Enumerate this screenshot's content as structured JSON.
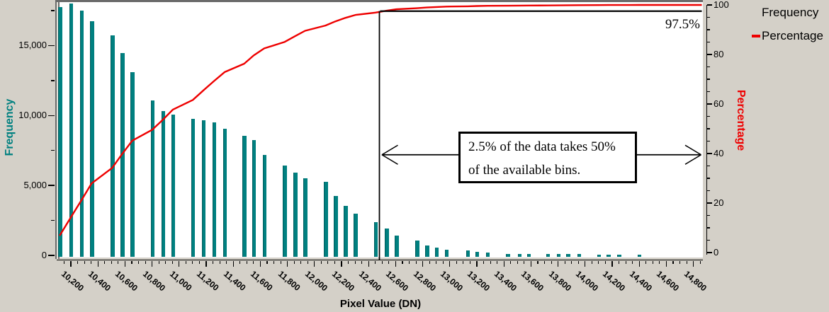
{
  "canvas": {
    "bg": "#d4d0c8",
    "plot_bg": "#ffffff",
    "border_gray": "#6a6a6a"
  },
  "colors": {
    "bar": "#008080",
    "bar_edge": "#015c5d",
    "line": "#ee0000",
    "left_title": "#008080",
    "right_title": "#ee0000",
    "text": "#000000"
  },
  "legend": {
    "items": [
      {
        "label": "Frequency",
        "marker": "none"
      },
      {
        "label": "Percentage",
        "marker": "red-dash",
        "marker_color": "#ee0000"
      }
    ]
  },
  "axes": {
    "x": {
      "title": "Pixel Value (DN)",
      "min": 10110,
      "max": 14860,
      "tick_values": [
        10200,
        10400,
        10600,
        10800,
        11000,
        11200,
        11400,
        11600,
        11800,
        12000,
        12200,
        12400,
        12600,
        12800,
        13000,
        13200,
        13400,
        13600,
        13800,
        14000,
        14200,
        14400,
        14600,
        14800
      ],
      "tick_labels": [
        "10,200",
        "10,400",
        "10,600",
        "10,800",
        "11,000",
        "11,200",
        "11,400",
        "11,600",
        "11,800",
        "12,000",
        "12,200",
        "12,400",
        "12,600",
        "12,800",
        "13,000",
        "13,200",
        "13,400",
        "13,600",
        "13,800",
        "14,000",
        "14,200",
        "14,400",
        "14,600",
        "14,800"
      ],
      "minor_step": 50,
      "label_rotation_deg": 40
    },
    "y_left": {
      "title": "Frequency",
      "min": 0,
      "max": 18300,
      "tick_values": [
        0,
        5000,
        10000,
        15000
      ],
      "tick_labels": [
        "0",
        "5,000",
        "10,000",
        "15,000"
      ],
      "minor_values": [
        2500,
        7500,
        12500,
        17500
      ]
    },
    "y_right": {
      "title": "Percentage",
      "min": 0,
      "max": 100,
      "tick_values": [
        0,
        20,
        40,
        60,
        80,
        100
      ],
      "tick_labels": [
        "0",
        "20",
        "40",
        "60",
        "80",
        "100"
      ],
      "minor_step": 5
    }
  },
  "annotations": {
    "threshold_label": "97.5%",
    "box_line1": "2.5% of the data takes 50%",
    "box_line2": "of the available bins.",
    "vline_dn": 12480,
    "hline_pct": 97.5,
    "arrow_pct": 39.5
  },
  "chart_data": {
    "type": "bar",
    "title": "",
    "xlabel": "Pixel Value (DN)",
    "ylabel": "Frequency",
    "y2label": "Percentage",
    "x_range": [
      10110,
      14860
    ],
    "ylim": [
      0,
      18300
    ],
    "y2lim": [
      0,
      100
    ],
    "bars": [
      {
        "dn": 10120,
        "freq": 17750
      },
      {
        "dn": 10200,
        "freq": 18000
      },
      {
        "dn": 10279,
        "freq": 17500
      },
      {
        "dn": 10353,
        "freq": 16750
      },
      {
        "dn": 10505,
        "freq": 15750
      },
      {
        "dn": 10581,
        "freq": 14450
      },
      {
        "dn": 10654,
        "freq": 13100
      },
      {
        "dn": 10802,
        "freq": 11080
      },
      {
        "dn": 10881,
        "freq": 10300
      },
      {
        "dn": 10954,
        "freq": 10050
      },
      {
        "dn": 11101,
        "freq": 9760
      },
      {
        "dn": 11179,
        "freq": 9660
      },
      {
        "dn": 11258,
        "freq": 9510
      },
      {
        "dn": 11336,
        "freq": 9050
      },
      {
        "dn": 11481,
        "freq": 8550
      },
      {
        "dn": 11551,
        "freq": 8250
      },
      {
        "dn": 11629,
        "freq": 7180
      },
      {
        "dn": 11778,
        "freq": 6420
      },
      {
        "dn": 11856,
        "freq": 5920
      },
      {
        "dn": 11931,
        "freq": 5510
      },
      {
        "dn": 12081,
        "freq": 5260
      },
      {
        "dn": 12155,
        "freq": 4250
      },
      {
        "dn": 12228,
        "freq": 3540
      },
      {
        "dn": 12303,
        "freq": 2990
      },
      {
        "dn": 12451,
        "freq": 2380
      },
      {
        "dn": 12534,
        "freq": 1920
      },
      {
        "dn": 12605,
        "freq": 1420
      },
      {
        "dn": 12757,
        "freq": 1060
      },
      {
        "dn": 12830,
        "freq": 710
      },
      {
        "dn": 12902,
        "freq": 560
      },
      {
        "dn": 12975,
        "freq": 390
      },
      {
        "dn": 13132,
        "freq": 330
      },
      {
        "dn": 13200,
        "freq": 230
      },
      {
        "dn": 13279,
        "freq": 210
      },
      {
        "dn": 13429,
        "freq": 120
      },
      {
        "dn": 13515,
        "freq": 100
      },
      {
        "dn": 13583,
        "freq": 100
      },
      {
        "dn": 13724,
        "freq": 85
      },
      {
        "dn": 13803,
        "freq": 85
      },
      {
        "dn": 13874,
        "freq": 80
      },
      {
        "dn": 13953,
        "freq": 80
      },
      {
        "dn": 14101,
        "freq": 65
      },
      {
        "dn": 14171,
        "freq": 65
      },
      {
        "dn": 14249,
        "freq": 55
      },
      {
        "dn": 14398,
        "freq": 50
      }
    ],
    "overlay_line": {
      "name": "Percentage",
      "kind": "cumulative_percentage_of_frequencies",
      "end_value_pct": 100
    }
  }
}
